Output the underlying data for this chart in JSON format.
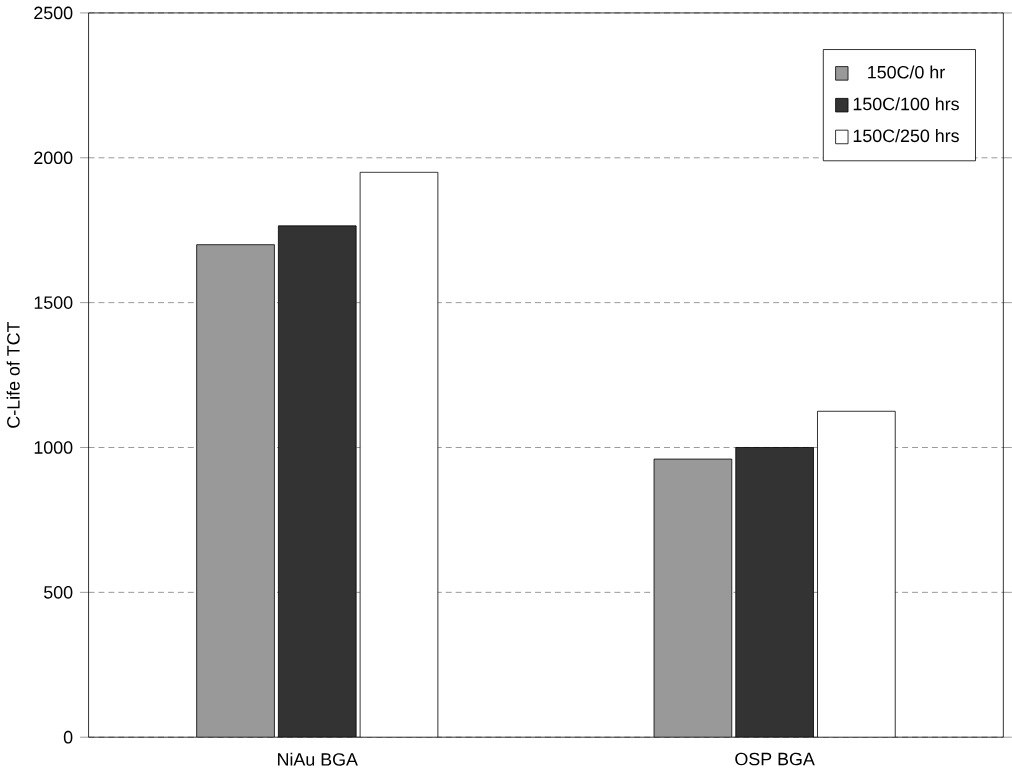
{
  "chart_data": {
    "type": "bar",
    "ylabel": "C-Life of TCT",
    "categories": [
      "NiAu BGA",
      "OSP BGA"
    ],
    "series": [
      {
        "name": "150C/0 hr",
        "color": "#999999",
        "values": [
          1700,
          960
        ]
      },
      {
        "name": "150C/100 hrs",
        "color": "#333333",
        "values": [
          1765,
          1000
        ]
      },
      {
        "name": "150C/250 hrs",
        "color": "#ffffff",
        "values": [
          1950,
          1125
        ]
      }
    ],
    "ylim": [
      0,
      2500
    ],
    "yticks": [
      0,
      500,
      1000,
      1500,
      2000,
      2500
    ],
    "grid": "y",
    "legend": "top right"
  }
}
